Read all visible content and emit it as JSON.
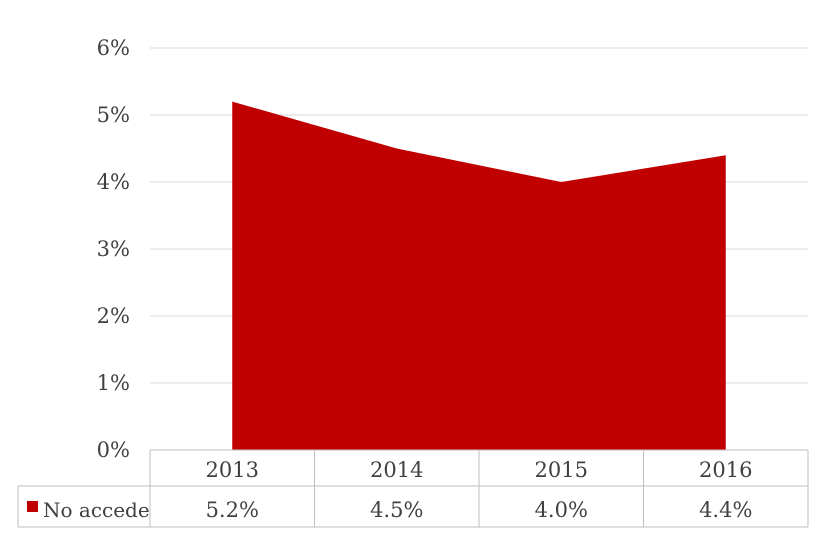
{
  "chart_data": {
    "type": "area",
    "categories": [
      "2013",
      "2014",
      "2015",
      "2016"
    ],
    "series": [
      {
        "name": "No accede",
        "values": [
          5.2,
          4.5,
          4.0,
          4.4
        ],
        "labels": [
          "5.2%",
          "4.5%",
          "4.0%",
          "4.4%"
        ],
        "color": "#C00000"
      }
    ],
    "ylim": [
      0,
      6
    ],
    "yticks": [
      "0%",
      "1%",
      "2%",
      "3%",
      "4%",
      "5%",
      "6%"
    ],
    "grid": true,
    "legend": "data-table-bottom",
    "gridline_color": "#D9D9D9"
  }
}
